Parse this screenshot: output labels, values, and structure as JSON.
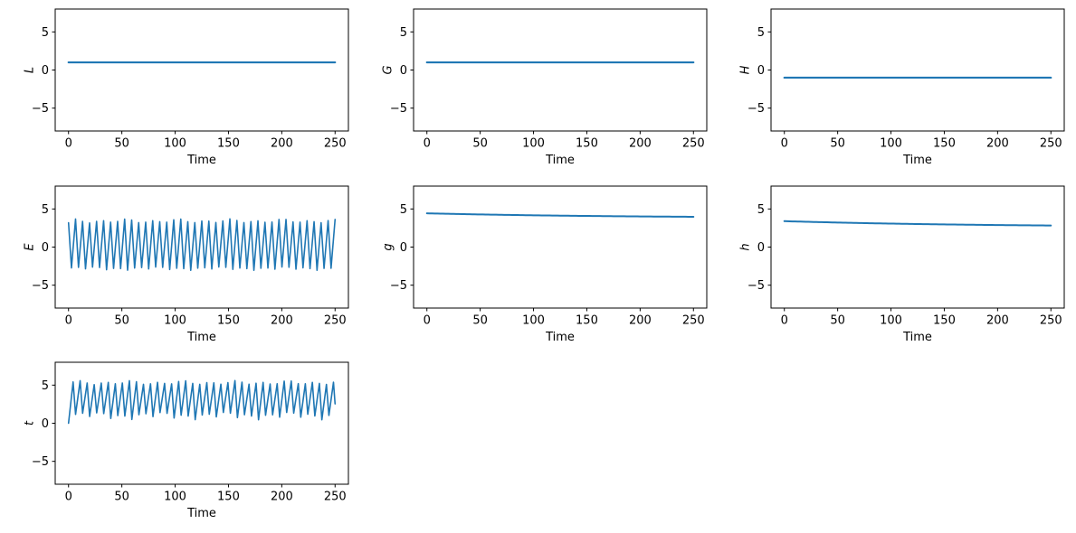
{
  "figure": {
    "background": "#ffffff",
    "axis_color": "#000000",
    "tick_color": "#000000"
  },
  "chart_data": [
    {
      "id": "L",
      "type": "line",
      "xlabel": "Time",
      "ylabel": "L",
      "xlim": [
        -12.5,
        262.5
      ],
      "ylim": [
        -8,
        8
      ],
      "xticks": [
        0,
        50,
        100,
        150,
        200,
        250
      ],
      "yticks": [
        -5,
        0,
        5
      ],
      "grid": false,
      "legend": null,
      "line_color": "#1f77b4",
      "line_width": 2.2,
      "series": {
        "name": "L",
        "kind": "constant",
        "value": 1.0,
        "x_start": 0,
        "x_end": 250,
        "summary": "L stays constant at 1.0 for the whole time range 0-250"
      }
    },
    {
      "id": "G",
      "type": "line",
      "xlabel": "Time",
      "ylabel": "G",
      "xlim": [
        -12.5,
        262.5
      ],
      "ylim": [
        -8,
        8
      ],
      "xticks": [
        0,
        50,
        100,
        150,
        200,
        250
      ],
      "yticks": [
        -5,
        0,
        5
      ],
      "grid": false,
      "legend": null,
      "line_color": "#1f77b4",
      "line_width": 2.2,
      "series": {
        "name": "G",
        "kind": "constant",
        "value": 1.0,
        "x_start": 0,
        "x_end": 250,
        "summary": "G stays constant at 1.0 for the whole time range 0-250"
      }
    },
    {
      "id": "H",
      "type": "line",
      "xlabel": "Time",
      "ylabel": "H",
      "xlim": [
        -12.5,
        262.5
      ],
      "ylim": [
        -8,
        8
      ],
      "xticks": [
        0,
        50,
        100,
        150,
        200,
        250
      ],
      "yticks": [
        -5,
        0,
        5
      ],
      "grid": false,
      "legend": null,
      "line_color": "#1f77b4",
      "line_width": 2.2,
      "series": {
        "name": "H",
        "kind": "constant",
        "value": -1.0,
        "x_start": 0,
        "x_end": 250,
        "summary": "H stays constant at -1.0 for the whole time range 0-250"
      }
    },
    {
      "id": "E",
      "type": "line",
      "xlabel": "Time",
      "ylabel": "E",
      "xlim": [
        -12.5,
        262.5
      ],
      "ylim": [
        -8,
        8
      ],
      "xticks": [
        0,
        50,
        100,
        150,
        200,
        250
      ],
      "yticks": [
        -5,
        0,
        5
      ],
      "grid": false,
      "legend": null,
      "line_color": "#1f77b4",
      "line_width": 1.6,
      "series": {
        "name": "E",
        "kind": "sawtooth",
        "x_start": 0,
        "x_end": 250,
        "start_value": 3.2,
        "start_at": "peak",
        "period": 6.58,
        "rise_fraction": 0.58,
        "peak": 3.4,
        "trough": -2.8,
        "peak_wobble": 0.3,
        "trough_wobble": 0.25,
        "summary": "E oscillates rapidly (~38 cycles over 0-250, period ~6.6) between roughly -3.1 and +3.7, starting near 3.2"
      }
    },
    {
      "id": "g",
      "type": "line",
      "xlabel": "Time",
      "ylabel": "g",
      "xlim": [
        -12.5,
        262.5
      ],
      "ylim": [
        -8,
        8
      ],
      "xticks": [
        0,
        50,
        100,
        150,
        200,
        250
      ],
      "yticks": [
        -5,
        0,
        5
      ],
      "grid": false,
      "legend": null,
      "line_color": "#1f77b4",
      "line_width": 2.0,
      "series": {
        "name": "g",
        "kind": "exp_decay",
        "x_start": 0,
        "x_end": 250,
        "a": 3.82,
        "b": 0.61,
        "tau": 180,
        "sample_step": 2.5,
        "summary": "g drifts slowly down from ~4.43 at t=0 to ~3.95 at t=250"
      }
    },
    {
      "id": "h",
      "type": "line",
      "xlabel": "Time",
      "ylabel": "h",
      "xlim": [
        -12.5,
        262.5
      ],
      "ylim": [
        -8,
        8
      ],
      "xticks": [
        0,
        50,
        100,
        150,
        200,
        250
      ],
      "yticks": [
        -5,
        0,
        5
      ],
      "grid": false,
      "legend": null,
      "line_color": "#1f77b4",
      "line_width": 2.0,
      "series": {
        "name": "h",
        "kind": "exp_decay",
        "x_start": 0,
        "x_end": 250,
        "a": 2.62,
        "b": 0.78,
        "tau": 190,
        "sample_step": 2.5,
        "summary": "h drifts slowly down from ~3.40 at t=0 to ~2.80 at t=250"
      }
    },
    {
      "id": "t",
      "type": "line",
      "xlabel": "Time",
      "ylabel": "t",
      "xlim": [
        -12.5,
        262.5
      ],
      "ylim": [
        -8,
        8
      ],
      "xticks": [
        0,
        50,
        100,
        150,
        200,
        250
      ],
      "yticks": [
        -5,
        0,
        5
      ],
      "grid": false,
      "legend": null,
      "line_color": "#1f77b4",
      "line_width": 1.6,
      "series": {
        "name": "t",
        "kind": "sawtooth",
        "x_start": 0,
        "x_end": 250,
        "start_value": 0.0,
        "start_at": "trough",
        "period": 6.6,
        "rise_fraction": 0.65,
        "peak": 5.3,
        "trough": 1.0,
        "peak_wobble": 0.3,
        "trough_wobble": 0.55,
        "summary": "t starts at 0, rises to ~5.4, then oscillates rapidly (~38 cycles, period ~6.6) between roughly 0.4 and 5.6"
      }
    }
  ]
}
